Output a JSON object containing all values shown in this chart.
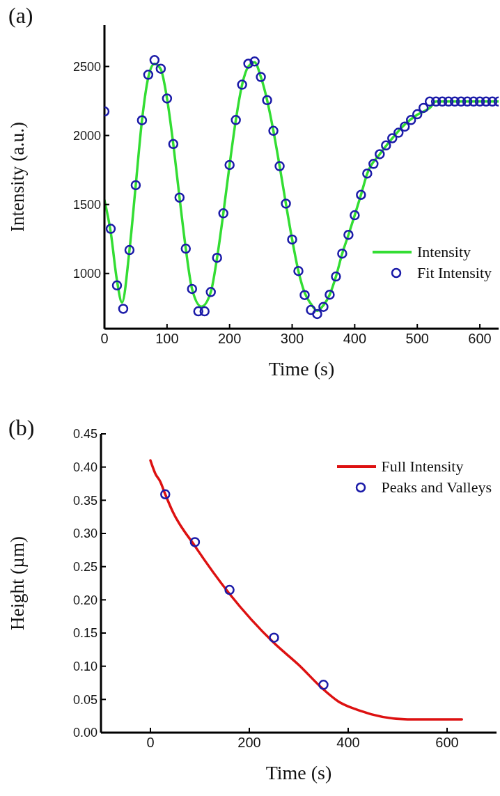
{
  "chart_data": [
    {
      "type": "line",
      "annotations": [
        "(a)"
      ],
      "xlabel": "Time (s)",
      "ylabel": "Intensity (a.u.)",
      "xlim": [
        0,
        630
      ],
      "ylim": [
        600,
        2800
      ],
      "xticks": [
        0,
        100,
        200,
        300,
        400,
        500,
        600
      ],
      "yticks": [
        1000,
        1500,
        2000,
        2500
      ],
      "legend": "bottom right",
      "grid": false,
      "series": [
        {
          "name": "Intensity",
          "color": "#33dd33",
          "x": [
            0,
            10,
            20,
            28,
            40,
            50,
            60,
            70,
            80,
            90,
            100,
            110,
            120,
            130,
            140,
            155,
            170,
            180,
            190,
            200,
            210,
            220,
            230,
            240,
            250,
            260,
            270,
            280,
            290,
            300,
            310,
            320,
            330,
            340,
            350,
            360,
            370,
            380,
            390,
            400,
            410,
            420,
            440,
            460,
            480,
            500,
            520,
            530,
            630
          ],
          "values": [
            1530,
            1300,
            950,
            790,
            1170,
            1640,
            2110,
            2420,
            2520,
            2480,
            2268,
            1938,
            1550,
            1180,
            888,
            760,
            866,
            1114,
            1436,
            1786,
            2112,
            2368,
            2500,
            2530,
            2424,
            2256,
            2034,
            1778,
            1506,
            1246,
            1018,
            860,
            780,
            730,
            770,
            846,
            978,
            1144,
            1280,
            1422,
            1570,
            1724,
            1864,
            1980,
            2080,
            2150,
            2200,
            2246,
            2246
          ]
        },
        {
          "name": "Fit Intensity",
          "type": "scatter",
          "color": "#1a1aa8",
          "x": [
            0,
            10,
            20,
            30,
            40,
            50,
            60,
            70,
            80,
            90,
            100,
            110,
            120,
            130,
            140,
            150,
            160,
            170,
            180,
            190,
            200,
            210,
            220,
            230,
            240,
            250,
            260,
            270,
            280,
            290,
            300,
            310,
            320,
            330,
            340,
            350,
            360,
            370,
            380,
            390,
            400,
            410,
            420,
            430,
            440,
            450,
            460,
            470,
            480,
            490,
            500,
            510,
            520,
            530,
            540,
            550,
            560,
            570,
            580,
            590,
            600,
            610,
            620,
            630
          ],
          "values": [
            2174,
            1324,
            914,
            744,
            1170,
            1640,
            2110,
            2440,
            2546,
            2484,
            2268,
            1938,
            1550,
            1180,
            888,
            726,
            726,
            866,
            1114,
            1436,
            1786,
            2112,
            2368,
            2520,
            2536,
            2424,
            2256,
            2034,
            1778,
            1506,
            1246,
            1018,
            844,
            736,
            706,
            758,
            846,
            978,
            1144,
            1280,
            1422,
            1570,
            1724,
            1794,
            1864,
            1928,
            1980,
            2020,
            2064,
            2112,
            2154,
            2200,
            2246,
            2246,
            2246,
            2246,
            2246,
            2246,
            2246,
            2246,
            2246,
            2246,
            2246,
            2246
          ]
        }
      ]
    },
    {
      "type": "line",
      "annotations": [
        "(b)"
      ],
      "xlabel": "Time (s)",
      "ylabel": "Height (µm)",
      "xlim": [
        -100,
        700
      ],
      "ylim": [
        0,
        0.45
      ],
      "xticks": [
        0,
        200,
        400,
        600
      ],
      "yticks": [
        {
          "value": 0,
          "label": "0.00"
        },
        {
          "value": 0.05,
          "label": "0.05"
        },
        {
          "value": 0.1,
          "label": "0.10"
        },
        {
          "value": 0.15,
          "label": "0.15"
        },
        {
          "value": 0.2,
          "label": "0.20"
        },
        {
          "value": 0.25,
          "label": "0.25"
        },
        {
          "value": 0.3,
          "label": "0.30"
        },
        {
          "value": 0.35,
          "label": "0.35"
        },
        {
          "value": 0.4,
          "label": "0.40"
        },
        {
          "value": 0.45,
          "label": "0.45"
        }
      ],
      "legend": "top right",
      "grid": false,
      "series": [
        {
          "name": "Full Intensity",
          "color": "#dd1111",
          "x": [
            0,
            10,
            20,
            30,
            45,
            90,
            160,
            250,
            300,
            350,
            380,
            420,
            520,
            630
          ],
          "values": [
            0.41,
            0.39,
            0.378,
            0.359,
            0.333,
            0.281,
            0.209,
            0.135,
            0.102,
            0.065,
            0.047,
            0.034,
            0.02,
            0.02
          ]
        },
        {
          "name": "Peaks and Valleys",
          "type": "scatter",
          "color": "#1a1aa8",
          "x": [
            30,
            90,
            160,
            250,
            350
          ],
          "values": [
            0.359,
            0.287,
            0.215,
            0.143,
            0.072
          ]
        }
      ]
    }
  ]
}
